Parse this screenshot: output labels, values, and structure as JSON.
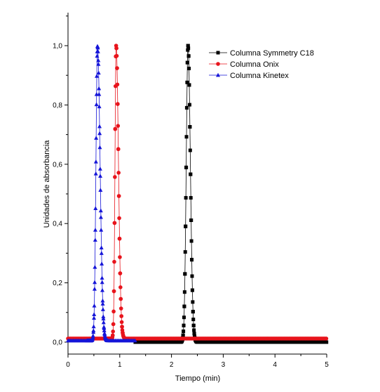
{
  "chart_data": {
    "type": "line",
    "xlabel": "Tiempo (min)",
    "ylabel": "Unidades de absorbancia",
    "xlim": [
      0,
      5
    ],
    "ylim": [
      -0.02,
      1.1
    ],
    "x_ticks": [
      "0",
      "1",
      "2",
      "3",
      "4",
      "5"
    ],
    "y_ticks": [
      "0,0",
      "0,2",
      "0,4",
      "0,6",
      "0,8",
      "1,0"
    ],
    "x_tick_values": [
      0,
      1,
      2,
      3,
      4,
      5
    ],
    "y_tick_values": [
      0,
      0.2,
      0.4,
      0.6,
      0.8,
      1.0
    ],
    "grid": false,
    "legend_position": "top-right",
    "series": [
      {
        "name": "Columna Symmetry C18",
        "color": "#000000",
        "marker": "square",
        "peak": {
          "x": 2.32,
          "y": 1.0,
          "sigma_left": 0.035,
          "sigma_right": 0.045
        },
        "x_range": [
          1.3,
          5.0
        ],
        "baseline": 0.0
      },
      {
        "name": "Columna Onix",
        "color": "#e8141c",
        "marker": "circle",
        "peak": {
          "x": 0.93,
          "y": 1.0,
          "sigma_left": 0.022,
          "sigma_right": 0.045
        },
        "x_range": [
          0.0,
          5.0
        ],
        "baseline": 0.012
      },
      {
        "name": "Columna Kinetex",
        "color": "#1515d8",
        "marker": "triangle",
        "peak": {
          "x": 0.57,
          "y": 1.0,
          "sigma_left": 0.03,
          "sigma_right": 0.05
        },
        "x_range": [
          0.0,
          1.3
        ],
        "baseline": 0.005
      }
    ]
  }
}
